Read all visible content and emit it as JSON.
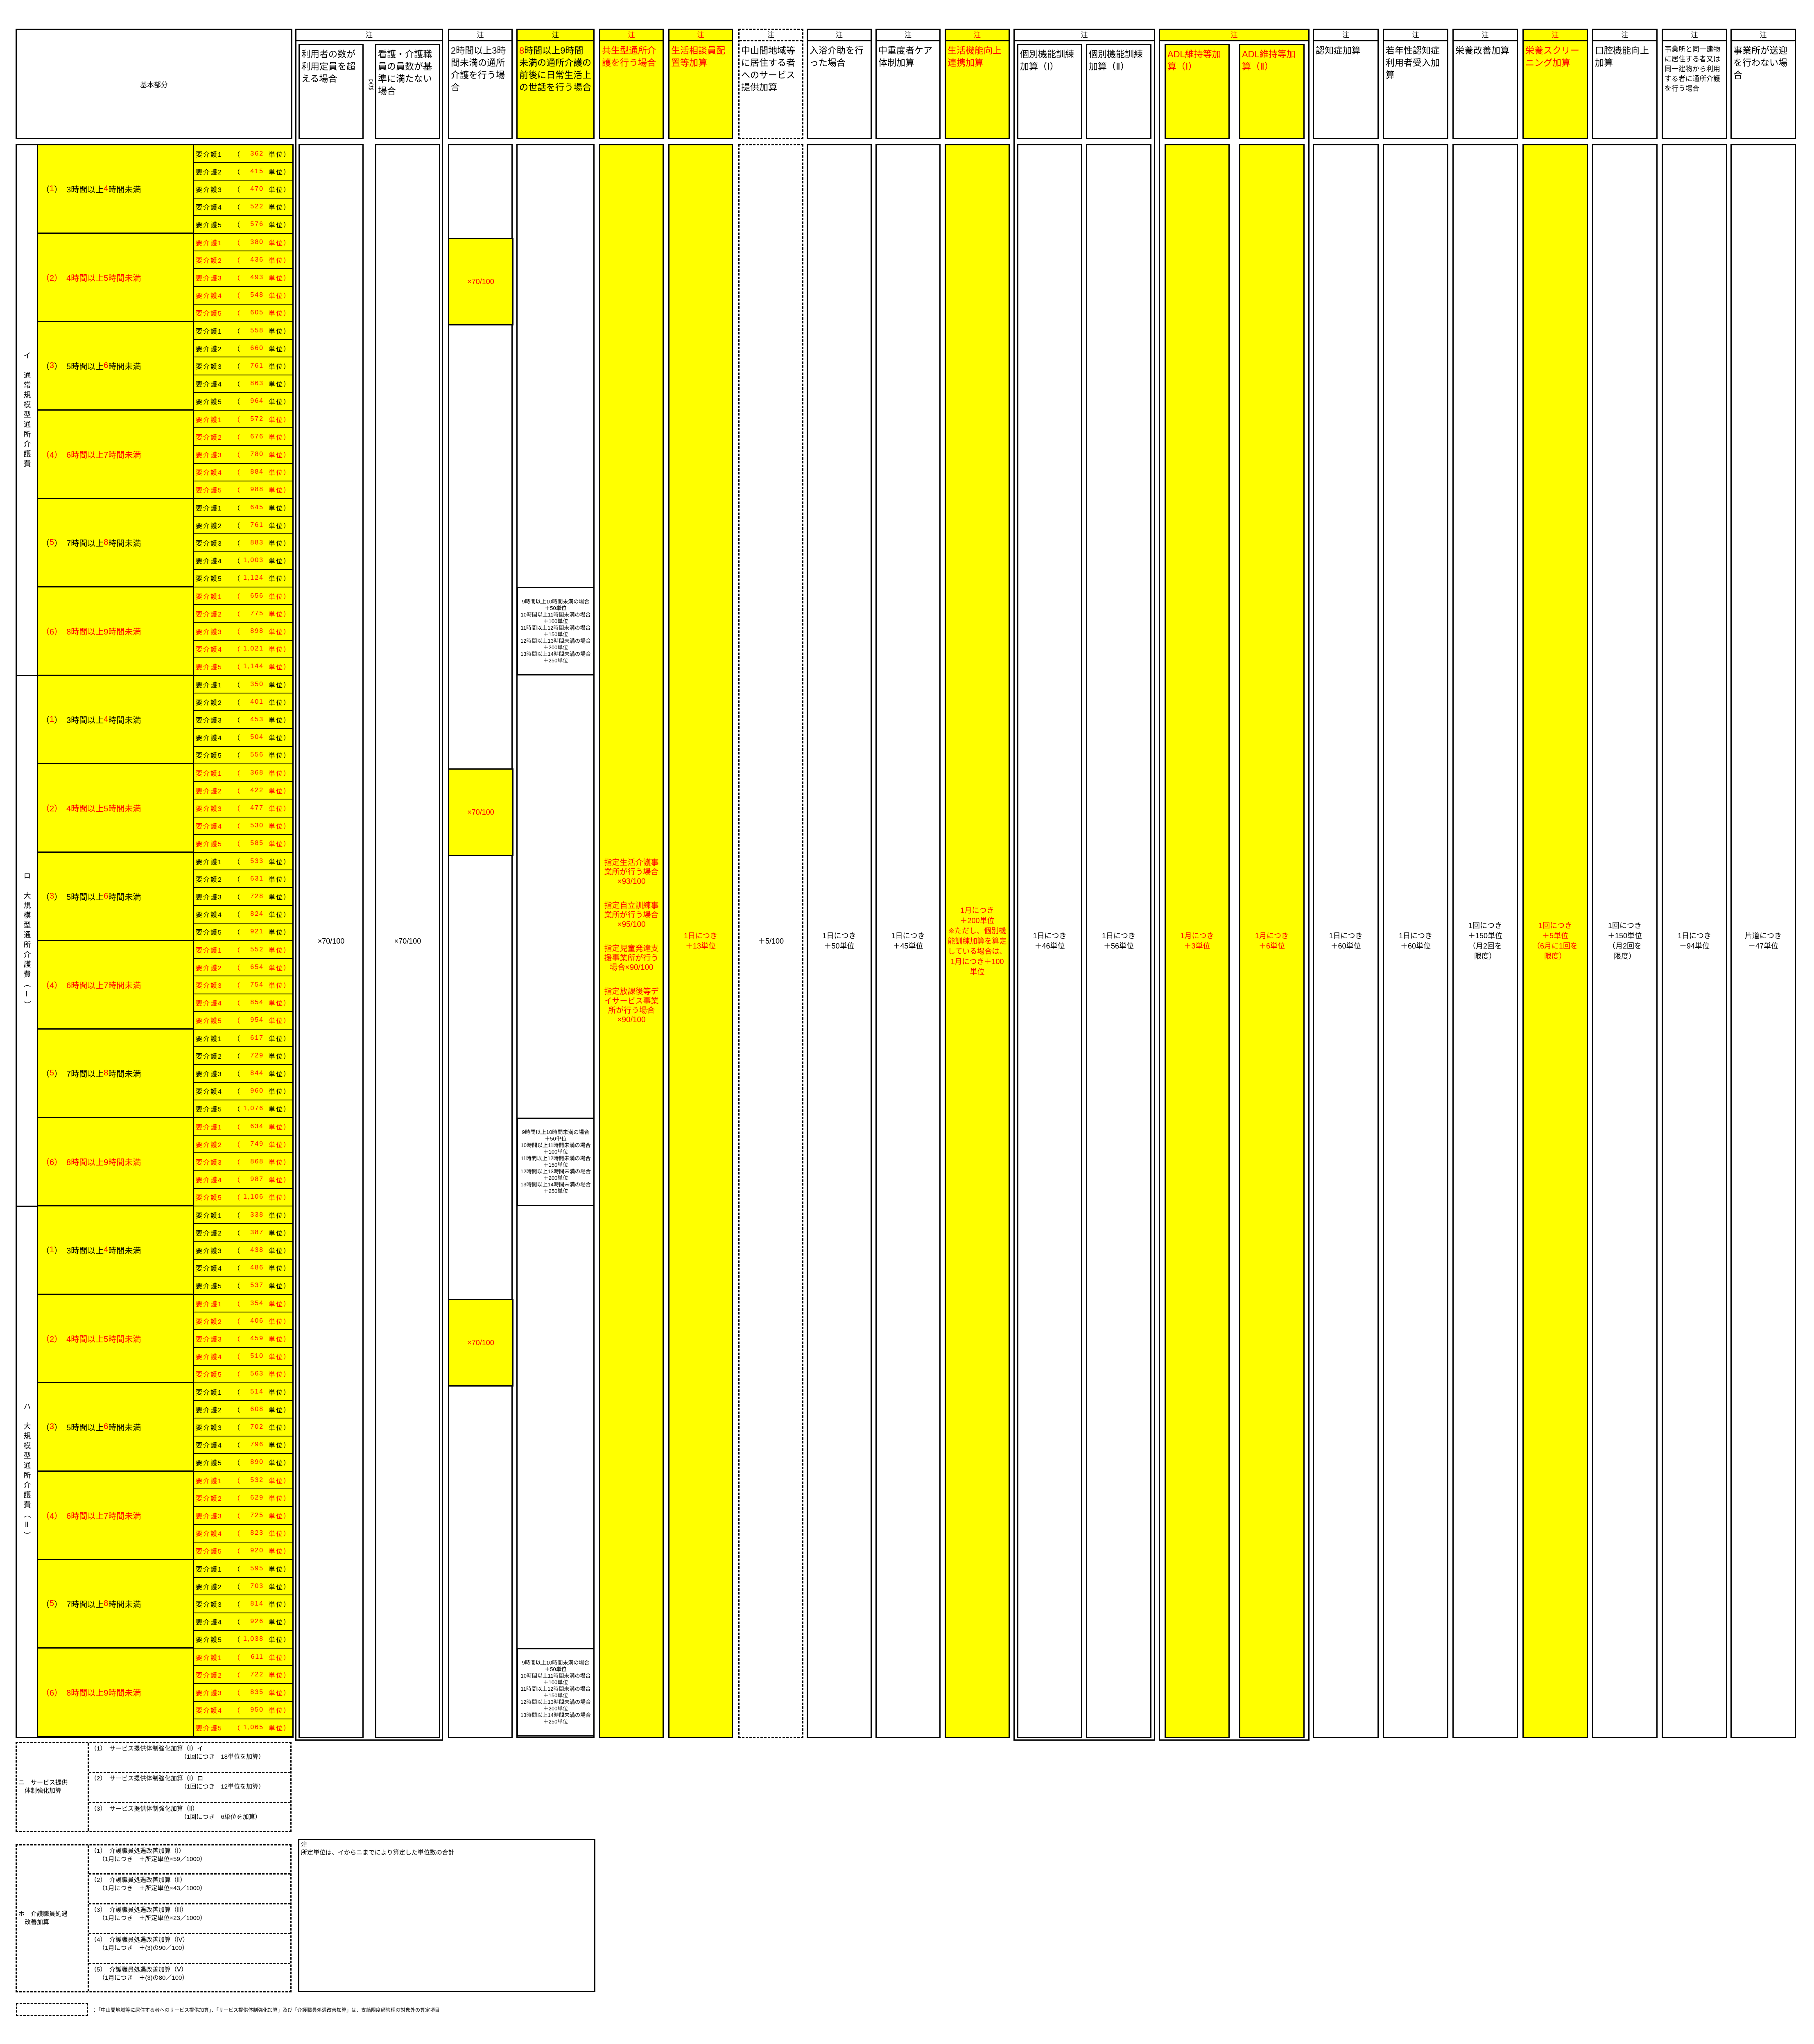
{
  "colors": {
    "highlight": "#FFFF00",
    "emphasis": "#FF0000"
  },
  "note_label": "注",
  "or_label": "又は",
  "base": {
    "header_label": "基本部分",
    "levels": [
      "要介護1",
      "要介護2",
      "要介護3",
      "要介護4",
      "要介護5"
    ],
    "unit_open": "（",
    "unit_suffix": "単位）",
    "groups": [
      {
        "label": "イ　通常規模型通所介護費",
        "durations": [
          {
            "red": false,
            "segments": [
              [
                "（",
                false
              ],
              [
                "1",
                true
              ],
              [
                "）　3時間以上",
                false
              ],
              [
                "4",
                true
              ],
              [
                "時間未満",
                false
              ]
            ],
            "units": [
              "362",
              "415",
              "470",
              "522",
              "576"
            ]
          },
          {
            "red": true,
            "segments": [
              [
                "（2）　4時間以上5時間未満",
                true
              ]
            ],
            "units": [
              "380",
              "436",
              "493",
              "548",
              "605"
            ]
          },
          {
            "red": false,
            "segments": [
              [
                "（",
                false
              ],
              [
                "3",
                true
              ],
              [
                "）　5時間以上",
                false
              ],
              [
                "6",
                true
              ],
              [
                "時間未満",
                false
              ]
            ],
            "units": [
              "558",
              "660",
              "761",
              "863",
              "964"
            ]
          },
          {
            "red": true,
            "segments": [
              [
                "（4）　6時間以上7時間未満",
                true
              ]
            ],
            "units": [
              "572",
              "676",
              "780",
              "884",
              "988"
            ]
          },
          {
            "red": false,
            "segments": [
              [
                "（",
                false
              ],
              [
                "5",
                true
              ],
              [
                "）　7時間以上",
                false
              ],
              [
                "8",
                true
              ],
              [
                "時間未満",
                false
              ]
            ],
            "units": [
              "645",
              "761",
              "883",
              "1,003",
              "1,124"
            ]
          },
          {
            "red": true,
            "segments": [
              [
                "（6）　8時間以上9時間未満",
                true
              ]
            ],
            "units": [
              "656",
              "775",
              "898",
              "1,021",
              "1,144"
            ]
          }
        ]
      },
      {
        "label": "ロ　大規模型通所介護費（Ⅰ）",
        "durations": [
          {
            "red": false,
            "segments": [
              [
                "（",
                false
              ],
              [
                "1",
                true
              ],
              [
                "）　3時間以上",
                false
              ],
              [
                "4",
                true
              ],
              [
                "時間未満",
                false
              ]
            ],
            "units": [
              "350",
              "401",
              "453",
              "504",
              "556"
            ]
          },
          {
            "red": true,
            "segments": [
              [
                "（2）　4時間以上5時間未満",
                true
              ]
            ],
            "units": [
              "368",
              "422",
              "477",
              "530",
              "585"
            ]
          },
          {
            "red": false,
            "segments": [
              [
                "（",
                false
              ],
              [
                "3",
                true
              ],
              [
                "）　5時間以上",
                false
              ],
              [
                "6",
                true
              ],
              [
                "時間未満",
                false
              ]
            ],
            "units": [
              "533",
              "631",
              "728",
              "824",
              "921"
            ]
          },
          {
            "red": true,
            "segments": [
              [
                "（4）　6時間以上7時間未満",
                true
              ]
            ],
            "units": [
              "552",
              "654",
              "754",
              "854",
              "954"
            ]
          },
          {
            "red": false,
            "segments": [
              [
                "（",
                false
              ],
              [
                "5",
                true
              ],
              [
                "）　7時間以上",
                false
              ],
              [
                "8",
                true
              ],
              [
                "時間未満",
                false
              ]
            ],
            "units": [
              "617",
              "729",
              "844",
              "960",
              "1,076"
            ]
          },
          {
            "red": true,
            "segments": [
              [
                "（6）　8時間以上9時間未満",
                true
              ]
            ],
            "units": [
              "634",
              "749",
              "868",
              "987",
              "1,106"
            ]
          }
        ]
      },
      {
        "label": "ハ　大規模型通所介護費（Ⅱ）",
        "durations": [
          {
            "red": false,
            "segments": [
              [
                "（",
                false
              ],
              [
                "1",
                true
              ],
              [
                "）　3時間以上",
                false
              ],
              [
                "4",
                true
              ],
              [
                "時間未満",
                false
              ]
            ],
            "units": [
              "338",
              "387",
              "438",
              "486",
              "537"
            ]
          },
          {
            "red": true,
            "segments": [
              [
                "（2）　4時間以上5時間未満",
                true
              ]
            ],
            "units": [
              "354",
              "406",
              "459",
              "510",
              "563"
            ]
          },
          {
            "red": false,
            "segments": [
              [
                "（",
                false
              ],
              [
                "3",
                true
              ],
              [
                "）　5時間以上",
                false
              ],
              [
                "6",
                true
              ],
              [
                "時間未満",
                false
              ]
            ],
            "units": [
              "514",
              "608",
              "702",
              "796",
              "890"
            ]
          },
          {
            "red": true,
            "segments": [
              [
                "（4）　6時間以上7時間未満",
                true
              ]
            ],
            "units": [
              "532",
              "629",
              "725",
              "823",
              "920"
            ]
          },
          {
            "red": false,
            "segments": [
              [
                "（",
                false
              ],
              [
                "5",
                true
              ],
              [
                "）　7時間以上",
                false
              ],
              [
                "8",
                true
              ],
              [
                "時間未満",
                false
              ]
            ],
            "units": [
              "595",
              "703",
              "814",
              "926",
              "1,038"
            ]
          },
          {
            "red": true,
            "segments": [
              [
                "（6）　8時間以上9時間未満",
                true
              ]
            ],
            "units": [
              "611",
              "722",
              "835",
              "950",
              "1,065"
            ]
          }
        ]
      }
    ]
  },
  "columns": {
    "over_capacity": {
      "header": "利用者の数が利用定員を超える場合",
      "body": "×70/100"
    },
    "staff_shortage": {
      "header": "看護・介護職員の員数が基準に満たない場合",
      "body": "×70/100"
    },
    "two_to_three_hours": {
      "header": "2時間以上3時間未満の通所介護を行う場合",
      "body": "×70/100"
    },
    "extended_care": {
      "header_hl": "8",
      "header_rest": "時間以上9時間未満の通所介護の前後に日常生活上の世話を行う場合",
      "body_lines": [
        "9時間以上10時間未満の場合",
        "＋50単位",
        "10時間以上11時間未満の場合",
        "＋100単位",
        "11時間以上12時間未満の場合",
        "＋150単位",
        "12時間以上13時間未満の場合",
        "＋200単位",
        "13時間以上14時間未満の場合",
        "＋250単位"
      ]
    },
    "symbiotic": {
      "header": "共生型通所介護を行う場合",
      "body": [
        "指定生活介護事業所が行う場合×93/100",
        "指定自立訓練事業所が行う場合×95/100",
        "指定児童発達支援事業所が行う場合×90/100",
        "指定放課後等デイサービス事業所が行う場合×90/100"
      ]
    },
    "counselor": {
      "header": "生活相談員配置等加算",
      "body": "1日につき\n＋13単位"
    },
    "mountain_area": {
      "header": "中山間地域等に居住する者へのサービス提供加算",
      "body": "＋5/100"
    },
    "bathing": {
      "header": "入浴介助を行った場合",
      "body": "1日につき\n＋50単位"
    },
    "moderate_severe": {
      "header": "中重度者ケア体制加算",
      "body": "1日につき\n＋45単位"
    },
    "life_function": {
      "header": "生活機能向上連携加算",
      "body": "1月につき\n＋200単位\n※ただし、個別機能訓練加算を算定している場合は、1月につき＋100単位"
    },
    "individual_training_1": {
      "header": "個別機能訓練加算（Ⅰ）",
      "body": "1日につき\n＋46単位"
    },
    "individual_training_2": {
      "header": "個別機能訓練加算（Ⅱ）",
      "body": "1日につき\n＋56単位"
    },
    "adl_1": {
      "header": "ADL維持等加算（Ⅰ）",
      "body": "1月につき\n＋3単位"
    },
    "adl_2": {
      "header": "ADL維持等加算（Ⅱ）",
      "body": "1月につき\n＋6単位"
    },
    "dementia": {
      "header": "認知症加算",
      "body": "1日につき\n＋60単位"
    },
    "young_dementia": {
      "header": "若年性認知症利用者受入加算",
      "body": "1日につき\n＋60単位"
    },
    "nutrition": {
      "header": "栄養改善加算",
      "body": "1回につき\n＋150単位\n（月2回を\n限度）"
    },
    "nutrition_screening": {
      "header": "栄養スクリーニング加算",
      "body": "1回につき\n＋5単位\n（6月に1回を\n限度）"
    },
    "oral": {
      "header": "口腔機能向上加算",
      "body": "1回につき\n＋150単位\n（月2回を\n限度）"
    },
    "same_building": {
      "header": "事業所と同一建物に居住する者又は同一建物から利用する者に通所介護を行う場合",
      "body": "1日につき\n－94単位"
    },
    "no_transport": {
      "header": "事業所が送迎を行わない場合",
      "body": "片道につき\n－47単位"
    }
  },
  "service_system": {
    "label": "ニ　サービス提供\n　体制強化加算",
    "items": [
      {
        "title": "（1）　サービス提供体制強化加算（Ⅰ）イ",
        "detail": "（1回につき　18単位を加算）"
      },
      {
        "title": "（2）　サービス提供体制強化加算（Ⅰ）ロ",
        "detail": "（1回につき　12単位を加算）"
      },
      {
        "title": "（3）　サービス提供体制強化加算（Ⅱ）",
        "detail": "（1回につき　6単位を加算）"
      }
    ]
  },
  "treatment_improvement": {
    "label": "ホ　介護職員処遇\n　改善加算",
    "items": [
      {
        "title": "（1）　介護職員処遇改善加算（Ⅰ）",
        "detail": "（1月につき　＋所定単位×59／1000）"
      },
      {
        "title": "（2）　介護職員処遇改善加算（Ⅱ）",
        "detail": "（1月につき　＋所定単位×43／1000）"
      },
      {
        "title": "（3）　介護職員処遇改善加算（Ⅲ）",
        "detail": "（1月につき　＋所定単位×23／1000）"
      },
      {
        "title": "（4）　介護職員処遇改善加算（Ⅳ）",
        "detail": "（1月につき　＋(3)の90／100）"
      },
      {
        "title": "（5）　介護職員処遇改善加算（Ⅴ）",
        "detail": "（1月につき　＋(3)の80／100）"
      }
    ]
  },
  "footnote": {
    "title": "注",
    "text": "所定単位は、イからニまでにより算定した単位数の合計"
  },
  "legend": {
    "text": "：「中山間地域等に居住する者へのサービス提供加算」、「サービス提供体制強化加算」及び「介護職員処遇改善加算」は、支給限度額管理の対象外の算定項目"
  }
}
